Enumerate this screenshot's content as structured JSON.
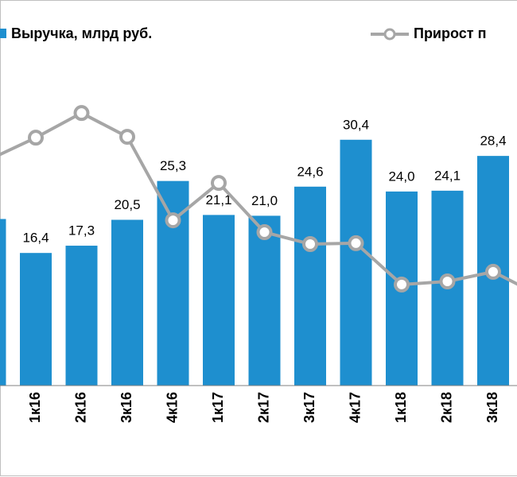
{
  "chart_data": {
    "type": "bar",
    "categories": [
      null,
      "1к16",
      "2к16",
      "3к16",
      "4к16",
      "1к17",
      "2к17",
      "3к17",
      "4к17",
      "1к18",
      "2к18",
      "3к18",
      null
    ],
    "series": [
      {
        "name": "Выручка, млрд руб.",
        "color": "#1e8fcf",
        "values": [
          20.6,
          16.4,
          17.3,
          20.5,
          25.3,
          21.1,
          21.0,
          24.6,
          30.4,
          24.0,
          24.1,
          28.4,
          null
        ],
        "value_labels": [
          null,
          "16,4",
          "17,3",
          "20,5",
          "25,3",
          "21,1",
          "21,0",
          "24,6",
          "30,4",
          "24,0",
          "24,1",
          "28,4",
          null
        ]
      },
      {
        "name": "Прирост п",
        "color": "#a6a6a6",
        "axis": "y2",
        "type": "line",
        "values": [
          80,
          87.6,
          96.3,
          87.9,
          58.4,
          71.6,
          54.2,
          50,
          50.3,
          35.7,
          36.8,
          40.2,
          32
        ]
      }
    ],
    "ylim": [
      0,
      35
    ],
    "y2lim": [
      0,
      100
    ]
  }
}
